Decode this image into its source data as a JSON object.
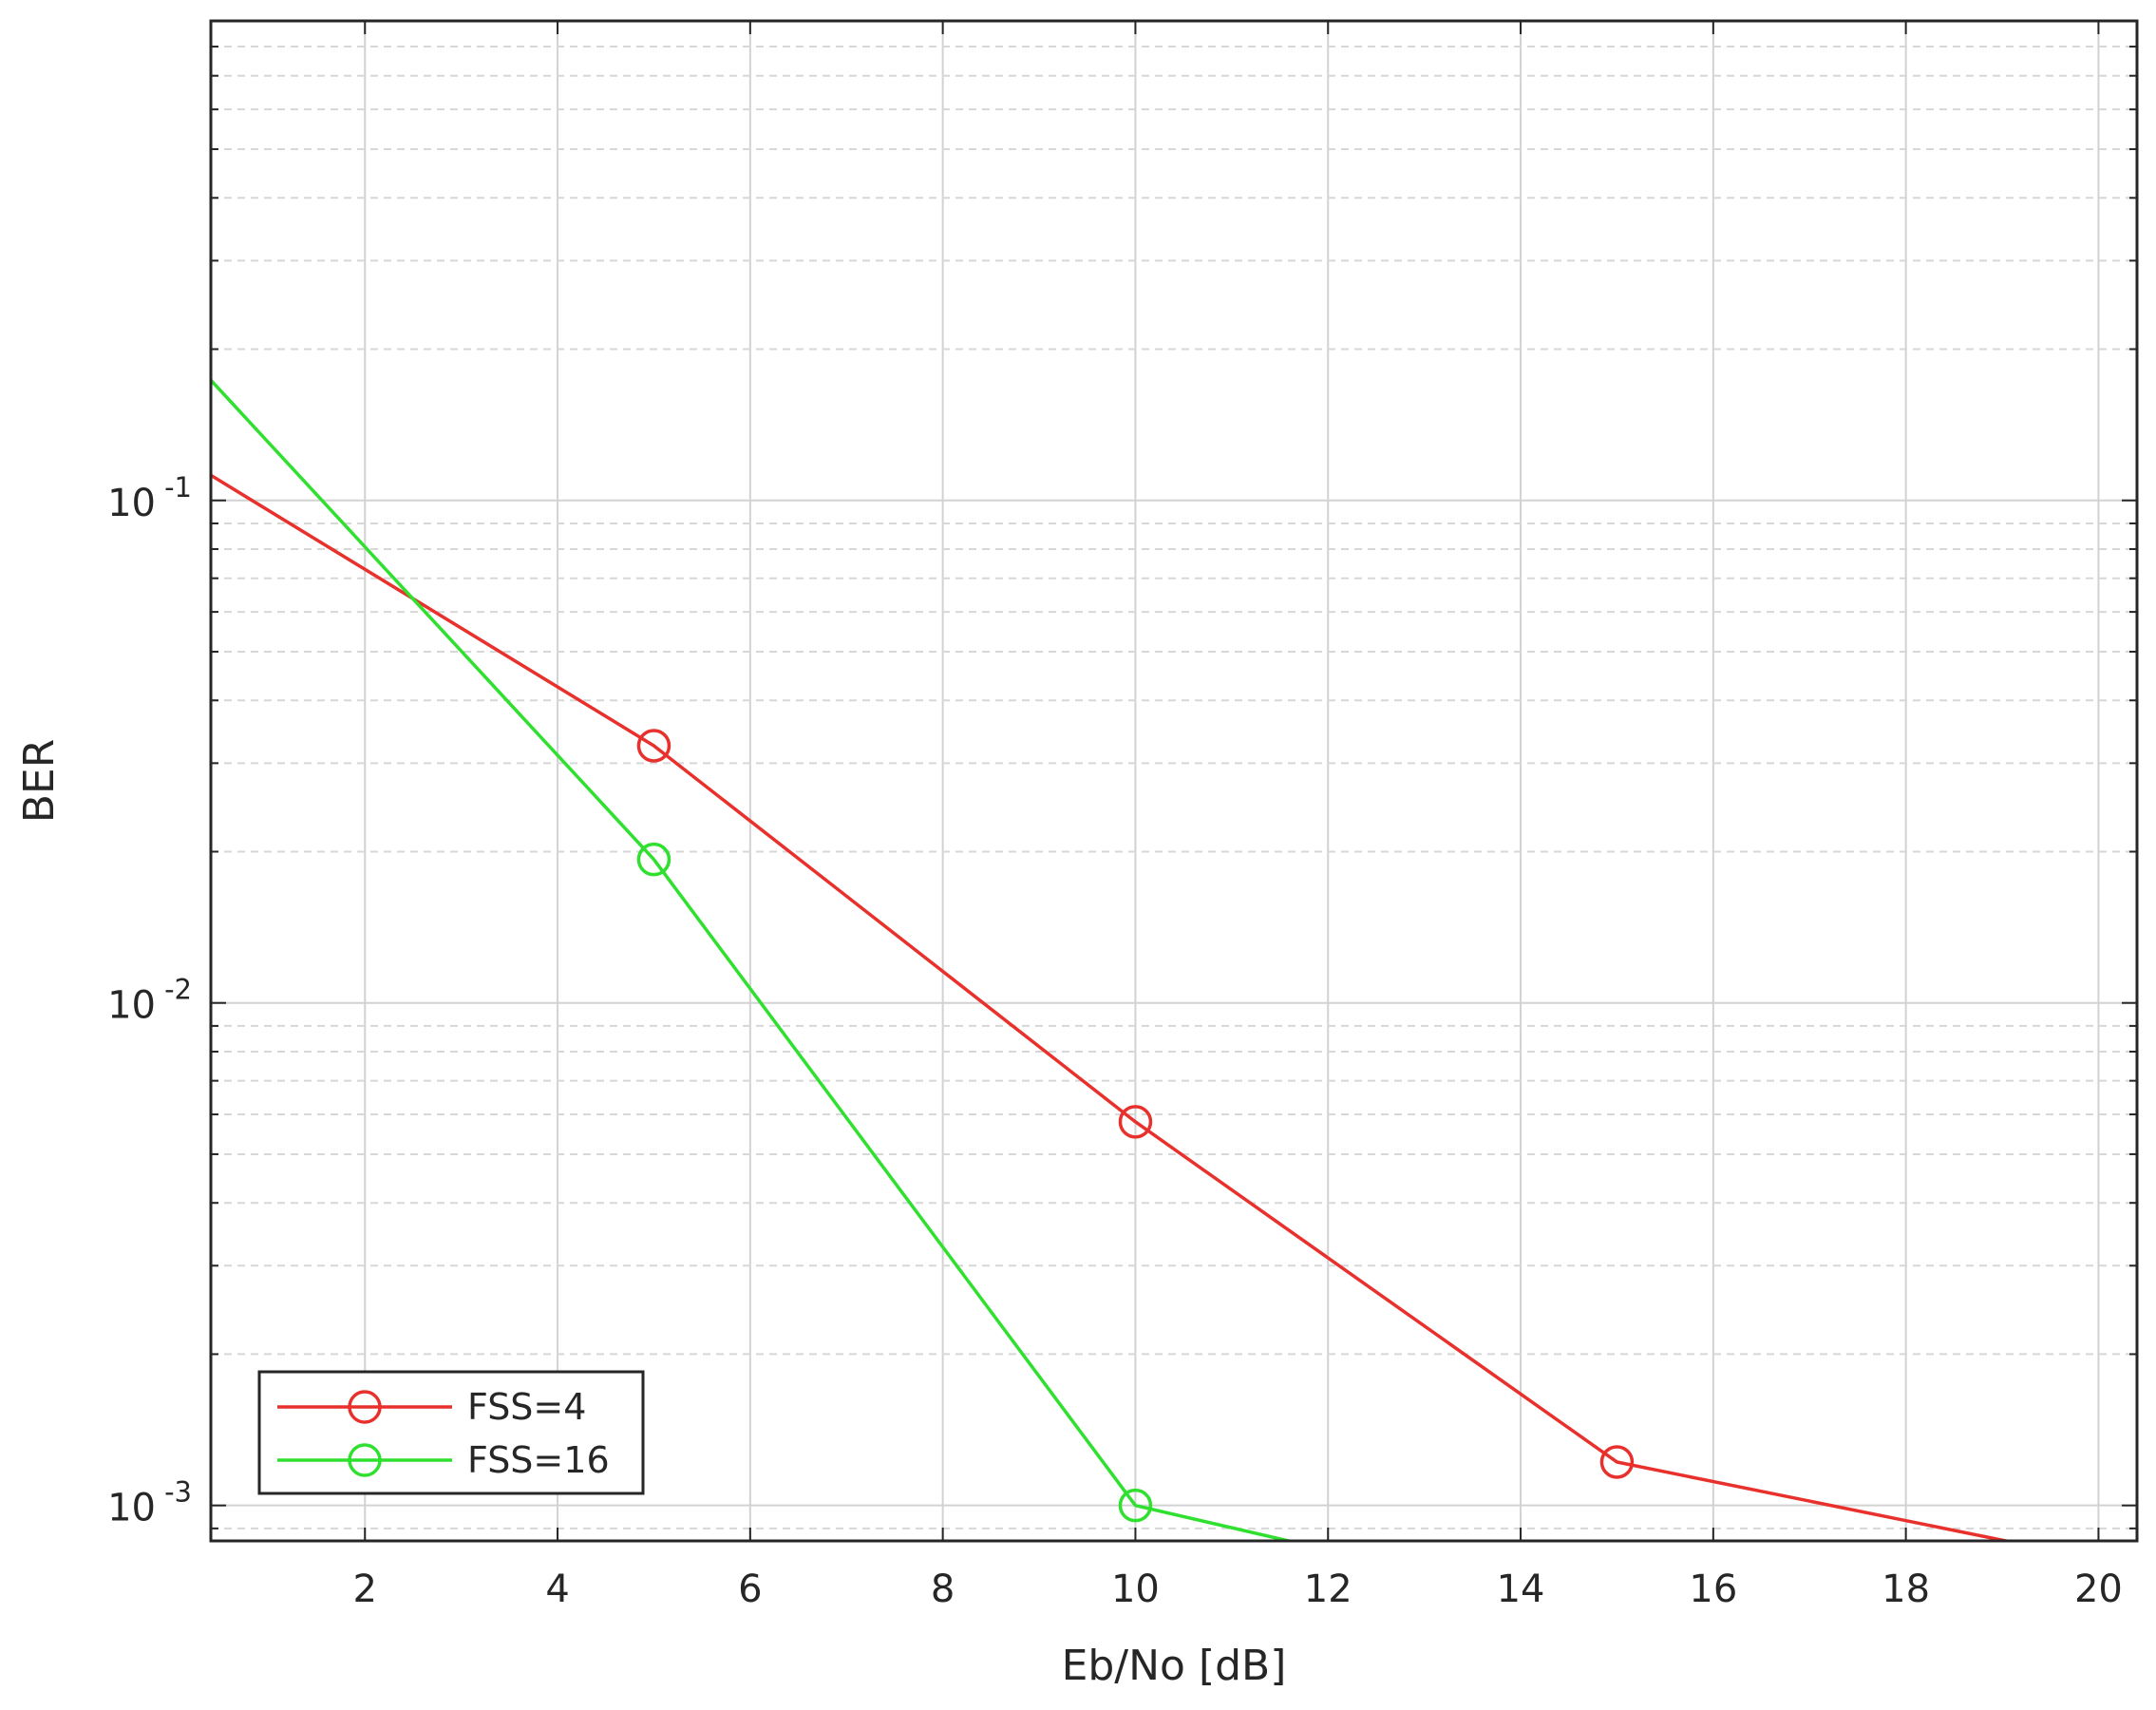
{
  "chart_data": {
    "type": "line",
    "title": "",
    "xlabel": "Eb/No [dB]",
    "ylabel": "BER",
    "xlim": [
      0.4,
      20.4
    ],
    "ylim": [
      0.00085,
      0.9
    ],
    "yscale": "log",
    "grid": true,
    "x_ticks": [
      2,
      4,
      6,
      8,
      10,
      12,
      14,
      16,
      18,
      20
    ],
    "x_tick_labels": [
      "2",
      "4",
      "6",
      "8",
      "10",
      "12",
      "14",
      "16",
      "18",
      "20"
    ],
    "y_ticks": [
      0.001,
      0.01,
      0.1
    ],
    "y_tick_labels": [
      {
        "base": "10",
        "exp": "-3"
      },
      {
        "base": "10",
        "exp": "-2"
      },
      {
        "base": "10",
        "exp": "-1"
      }
    ],
    "legend_position": "bottom-left",
    "series": [
      {
        "name": "FSS=4",
        "color": "#e8312c",
        "marker": "circle",
        "x": [
          0,
          5,
          10,
          15,
          20
        ],
        "y": [
          0.125,
          0.0325,
          0.0058,
          0.00122,
          0.00078
        ]
      },
      {
        "name": "FSS=16",
        "color": "#2fe02f",
        "marker": "circle",
        "x": [
          0,
          5,
          10,
          15
        ],
        "y": [
          0.21,
          0.0193,
          0.001,
          0.0006
        ]
      }
    ]
  }
}
